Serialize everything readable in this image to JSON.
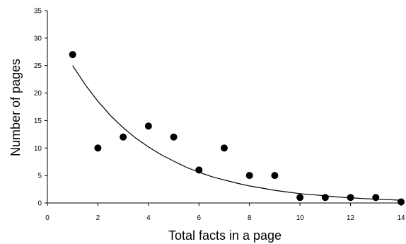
{
  "chart_data": {
    "type": "scatter",
    "title": "",
    "xlabel": "Total facts in a page",
    "ylabel": "Number of pages",
    "xlim": [
      0,
      14
    ],
    "ylim": [
      0,
      35
    ],
    "x_ticks": [
      0,
      2,
      4,
      6,
      8,
      10,
      12,
      14
    ],
    "y_ticks": [
      0,
      5,
      10,
      15,
      20,
      25,
      30,
      35
    ],
    "grid": false,
    "legend": "none",
    "series": [
      {
        "type": "scatter",
        "x": [
          1,
          2,
          3,
          4,
          5,
          6,
          7,
          8,
          9,
          10,
          11,
          12,
          13,
          14
        ],
        "y": [
          27,
          10,
          12,
          14,
          12,
          6,
          10,
          5,
          5,
          1,
          1,
          1,
          1,
          0.2
        ]
      },
      {
        "type": "line",
        "x": [
          1,
          1.5,
          2,
          2.5,
          3,
          3.5,
          4,
          4.5,
          5,
          5.5,
          6,
          6.5,
          7,
          7.5,
          8,
          8.5,
          9,
          9.5,
          10,
          10.5,
          11,
          11.5,
          12,
          12.5,
          13,
          13.5,
          14
        ],
        "y": [
          25.0,
          21.5,
          18.5,
          15.9,
          13.7,
          11.8,
          10.2,
          8.8,
          7.6,
          6.5,
          5.6,
          4.8,
          4.2,
          3.6,
          3.1,
          2.7,
          2.3,
          2.0,
          1.7,
          1.5,
          1.3,
          1.1,
          0.95,
          0.8,
          0.7,
          0.6,
          0.5
        ]
      }
    ],
    "colors": {
      "marker": "#000000",
      "line": "#000000",
      "axis": "#000000"
    }
  }
}
